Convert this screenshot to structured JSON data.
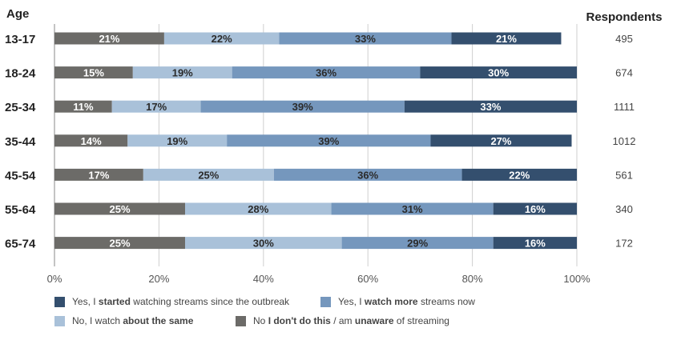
{
  "chart_data": {
    "type": "bar",
    "orientation": "horizontal",
    "stacked": true,
    "y_title": "Age",
    "right_title": "Respondents",
    "categories": [
      "13-17",
      "18-24",
      "25-34",
      "35-44",
      "45-54",
      "55-64",
      "65-74"
    ],
    "respondents": [
      "495",
      "674",
      "1111",
      "1012",
      "561",
      "340",
      "172"
    ],
    "series": [
      {
        "key": "no",
        "values": [
          21,
          15,
          11,
          14,
          17,
          25,
          25
        ]
      },
      {
        "key": "same",
        "values": [
          22,
          19,
          17,
          19,
          25,
          28,
          30
        ]
      },
      {
        "key": "more",
        "values": [
          33,
          36,
          39,
          39,
          36,
          31,
          29
        ]
      },
      {
        "key": "started",
        "values": [
          21,
          30,
          33,
          27,
          22,
          16,
          16
        ]
      }
    ],
    "xlim": [
      0,
      100
    ],
    "xticks": [
      "0%",
      "20%",
      "40%",
      "60%",
      "80%",
      "100%"
    ],
    "grid": true,
    "legend_position": "bottom"
  },
  "colors": {
    "started": "#344f6e",
    "more": "#7597bd",
    "same": "#a9c1d9",
    "no": "#6c6b68",
    "grid": "#cfcfcf",
    "axis": "#888888"
  },
  "legend": [
    {
      "key": "started",
      "color": "#344f6e",
      "pre": "Yes, I ",
      "bold": "started",
      "post": " watching streams since the outbreak",
      "bold2": "",
      "post2": ""
    },
    {
      "key": "more",
      "color": "#7597bd",
      "pre": "Yes, I ",
      "bold": "watch more",
      "post": " streams now",
      "bold2": "",
      "post2": ""
    },
    {
      "key": "same",
      "color": "#a9c1d9",
      "pre": "No, I watch ",
      "bold": "about the same",
      "post": "",
      "bold2": "",
      "post2": ""
    },
    {
      "key": "no",
      "color": "#6c6b68",
      "pre": "No ",
      "bold": "I don't do this",
      "post": " / am ",
      "bold2": "unaware",
      "post2": " of streaming"
    }
  ]
}
